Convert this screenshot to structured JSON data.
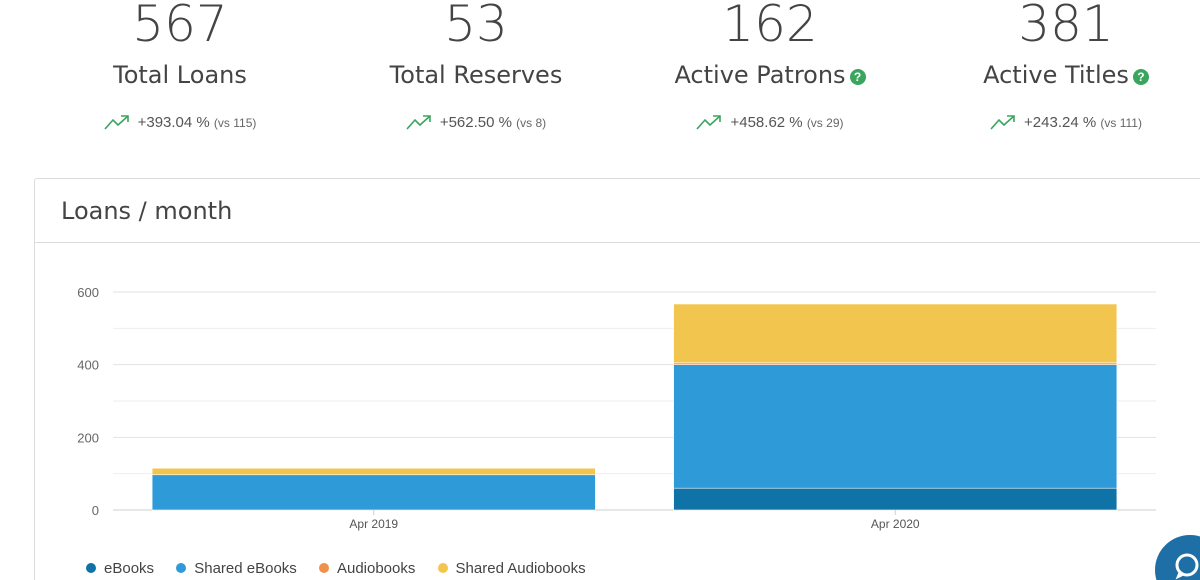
{
  "stats": [
    {
      "value": "567",
      "label": "Total Loans",
      "help": false,
      "change": "+393.04 %",
      "vs": "(vs 115)"
    },
    {
      "value": "53",
      "label": "Total Reserves",
      "help": false,
      "change": "+562.50 %",
      "vs": "(vs 8)"
    },
    {
      "value": "162",
      "label": "Active Patrons",
      "help": true,
      "change": "+458.62 %",
      "vs": "(vs 29)"
    },
    {
      "value": "381",
      "label": "Active Titles",
      "help": true,
      "change": "+243.24 %",
      "vs": "(vs 111)"
    }
  ],
  "help_glyph": "?",
  "colors": {
    "trend": "#3aa55d",
    "ebooks": "#0f73a8",
    "shared_ebooks": "#2f9ad8",
    "audiobooks": "#f0904a",
    "shared_audiobooks": "#f2c54e",
    "chat": "#1d6fa5"
  },
  "panel": {
    "title": "Loans / month"
  },
  "chart_data": {
    "type": "bar",
    "stacked": true,
    "categories": [
      "Apr 2019",
      "Apr 2020"
    ],
    "series": [
      {
        "name": "eBooks",
        "values": [
          0,
          60
        ]
      },
      {
        "name": "Shared eBooks",
        "values": [
          97,
          340
        ]
      },
      {
        "name": "Audiobooks",
        "values": [
          0,
          5
        ]
      },
      {
        "name": "Shared Audiobooks",
        "values": [
          18,
          162
        ]
      }
    ],
    "ylim": [
      0,
      600
    ],
    "yticks": [
      0,
      200,
      400,
      600
    ],
    "grid": true,
    "legend": "bottom-left"
  },
  "icons": {
    "trend": "trend-up-icon",
    "help": "help-circle-icon",
    "chat": "chat-icon"
  }
}
